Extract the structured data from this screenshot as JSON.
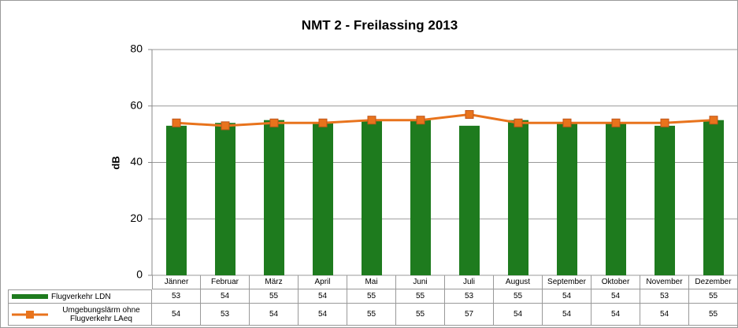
{
  "chart_data": {
    "type": "combo",
    "title": "NMT 2 - Freilassing 2013",
    "y_label": "dB",
    "categories": [
      "Jänner",
      "Februar",
      "März",
      "April",
      "Mai",
      "Juni",
      "Juli",
      "August",
      "September",
      "Oktober",
      "November",
      "Dezember"
    ],
    "series": [
      {
        "name": "Flugverkehr LDN",
        "type": "bar",
        "color": "#1e7b1e",
        "values": [
          53,
          54,
          55,
          54,
          55,
          55,
          53,
          55,
          54,
          54,
          53,
          55
        ]
      },
      {
        "name": "Umgebungslärm ohne Flugverkehr LAeq",
        "type": "line",
        "color": "#e8731c",
        "values": [
          54,
          53,
          54,
          54,
          55,
          55,
          57,
          54,
          54,
          54,
          54,
          55
        ]
      }
    ],
    "ylim": [
      0,
      80
    ],
    "yticks": [
      0,
      20,
      40,
      60,
      80
    ],
    "grid": true
  }
}
